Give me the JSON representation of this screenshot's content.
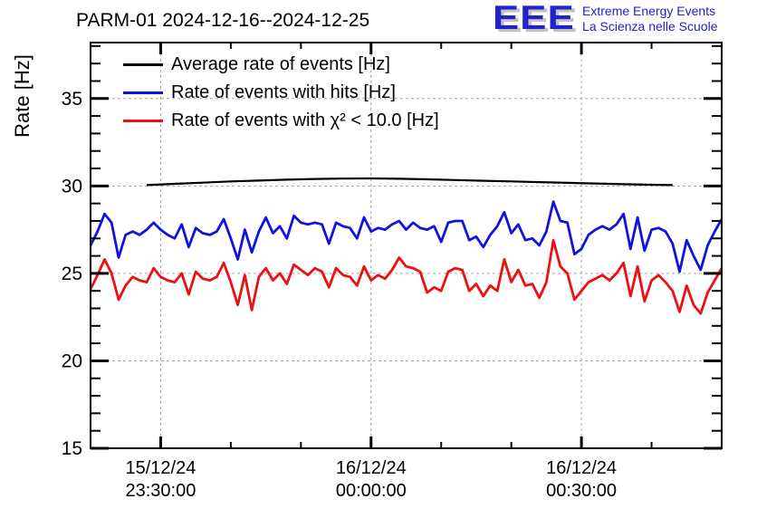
{
  "header": {
    "title": "PARM-01 2024-12-16--2024-12-25",
    "logo": {
      "acronym": "EEE",
      "tagline_line1": "Extreme Energy Events",
      "tagline_line2": "La Scienza nelle Scuole",
      "color": "#2222cc",
      "shadow_color": "#c2c2c2"
    }
  },
  "colors": {
    "frame": "#000000",
    "grid": "#a6a6a6",
    "average_line": "#000000",
    "hits_line": "#1212e0",
    "chi2_line": "#ec1010"
  },
  "chart_data": {
    "type": "line",
    "title": "PARM-01 2024-12-16--2024-12-25",
    "xlabel": "",
    "ylabel": "Rate [Hz]",
    "ylim": [
      15,
      38.2
    ],
    "y_major_ticks": [
      15,
      20,
      25,
      30,
      35
    ],
    "y_minor_step": 1,
    "x_range_minutes": [
      0,
      90
    ],
    "x_minor_step_minutes": 10,
    "x_major_ticks": [
      {
        "t": 10,
        "label_line1": "15/12/24",
        "label_line2": "23:30:00"
      },
      {
        "t": 40,
        "label_line1": "16/12/24",
        "label_line2": "00:00:00"
      },
      {
        "t": 70,
        "label_line1": "16/12/24",
        "label_line2": "00:30:00"
      }
    ],
    "grid": true,
    "legend_position": "top-left",
    "series": [
      {
        "id": "average",
        "name": "Average rate of events [Hz]",
        "color": "#000000",
        "line_width": 2.2,
        "t": [
          8,
          12,
          16,
          20,
          24,
          28,
          32,
          36,
          40,
          44,
          48,
          52,
          56,
          60,
          64,
          68,
          72,
          76,
          80,
          83
        ],
        "values": [
          30.05,
          30.12,
          30.19,
          30.26,
          30.31,
          30.36,
          30.4,
          30.42,
          30.43,
          30.41,
          30.38,
          30.34,
          30.3,
          30.26,
          30.22,
          30.18,
          30.14,
          30.1,
          30.07,
          30.05
        ]
      },
      {
        "id": "hits",
        "name": "Rate of events with hits [Hz]",
        "color": "#1212e0",
        "line_width": 2.8,
        "t_start": 0,
        "t_step": 1,
        "values": [
          26.6,
          27.4,
          28.4,
          27.9,
          25.9,
          27.2,
          27.4,
          27.2,
          27.5,
          27.9,
          27.5,
          27.2,
          27.0,
          27.8,
          26.5,
          27.6,
          27.3,
          27.2,
          27.4,
          28.1,
          27.0,
          25.8,
          27.5,
          26.2,
          27.4,
          28.2,
          27.3,
          27.7,
          27.0,
          28.3,
          27.9,
          27.8,
          27.9,
          27.8,
          26.7,
          27.9,
          27.7,
          27.6,
          27.0,
          28.2,
          27.4,
          27.6,
          27.5,
          27.8,
          28.0,
          27.5,
          27.9,
          27.6,
          27.5,
          27.7,
          26.8,
          27.9,
          28.0,
          28.0,
          26.9,
          27.1,
          26.5,
          27.2,
          27.7,
          28.5,
          27.3,
          27.8,
          26.9,
          27.0,
          26.6,
          27.4,
          29.1,
          28.0,
          27.9,
          26.1,
          26.4,
          27.2,
          27.5,
          27.7,
          27.5,
          27.8,
          28.4,
          26.4,
          28.2,
          26.3,
          27.5,
          27.6,
          27.4,
          26.7,
          25.1,
          26.9,
          26.0,
          25.2,
          26.6,
          27.4,
          28.1
        ]
      },
      {
        "id": "chi2",
        "name": "Rate of events with χ² < 10.0 [Hz]",
        "color": "#ec1010",
        "line_width": 2.8,
        "t_start": 0,
        "t_step": 1,
        "values": [
          24.1,
          24.9,
          25.8,
          25.0,
          23.5,
          24.3,
          24.8,
          24.6,
          24.5,
          25.3,
          24.8,
          24.6,
          24.5,
          25.0,
          23.8,
          25.1,
          24.7,
          24.6,
          24.8,
          25.6,
          24.5,
          23.2,
          24.9,
          22.9,
          24.8,
          25.3,
          24.6,
          25.0,
          24.4,
          25.5,
          25.2,
          24.9,
          25.3,
          25.1,
          24.2,
          25.3,
          24.9,
          24.8,
          24.3,
          25.4,
          24.6,
          24.9,
          24.7,
          25.2,
          25.9,
          25.4,
          25.3,
          25.1,
          23.9,
          24.2,
          24.0,
          25.1,
          25.3,
          25.2,
          24.0,
          24.4,
          23.7,
          24.3,
          24.0,
          25.8,
          24.5,
          25.2,
          24.3,
          24.4,
          23.6,
          24.5,
          26.9,
          25.4,
          25.0,
          23.5,
          24.0,
          24.5,
          24.7,
          24.9,
          24.6,
          25.0,
          25.6,
          23.7,
          25.4,
          23.4,
          24.6,
          24.9,
          24.5,
          24.0,
          22.8,
          24.3,
          23.2,
          22.7,
          23.9,
          24.6,
          25.3
        ]
      }
    ]
  }
}
